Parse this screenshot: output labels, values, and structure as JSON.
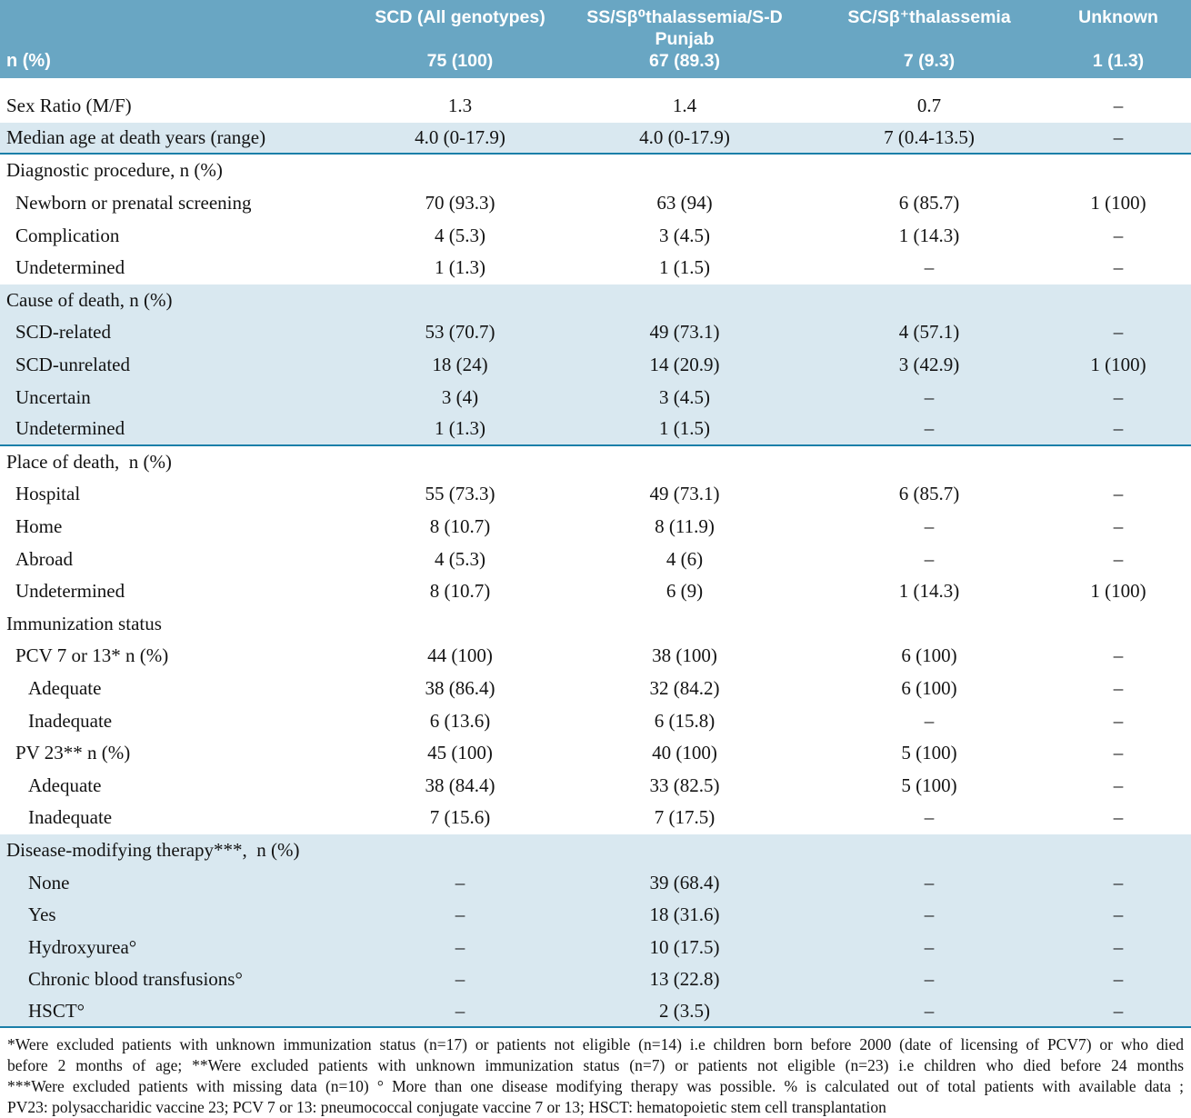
{
  "colors": {
    "header_bg": "#69a6c3",
    "highlight_bg": "#d9e8f0",
    "rule": "#1b7fa9"
  },
  "table": {
    "header": {
      "row_label": "n (%)",
      "columns": [
        {
          "title": "SCD (All genotypes)",
          "count": "75 (100)"
        },
        {
          "title": "SS/Sβ⁰thalassemia/S-D Punjab",
          "count": "67 (89.3)"
        },
        {
          "title": "SC/Sβ⁺thalassemia",
          "count": "7 (9.3)"
        },
        {
          "title": "Unknown",
          "count": "1 (1.3)"
        }
      ]
    },
    "rows": [
      {
        "label": "Sex Ratio (M/F)",
        "indent": 0,
        "highlight": false,
        "border_bottom": false,
        "values": [
          "1.3",
          "1.4",
          "0.7",
          "–"
        ]
      },
      {
        "label": "Median age at death years (range)",
        "indent": 0,
        "highlight": true,
        "border_bottom": true,
        "values": [
          "4.0 (0-17.9)",
          "4.0 (0-17.9)",
          "7 (0.4-13.5)",
          "–"
        ]
      },
      {
        "label": "Diagnostic procedure, n (%)",
        "indent": 0,
        "highlight": false,
        "border_bottom": false,
        "values": [
          "",
          "",
          "",
          ""
        ]
      },
      {
        "label": "Newborn or prenatal screening",
        "indent": 1,
        "highlight": false,
        "border_bottom": false,
        "values": [
          "70 (93.3)",
          "63 (94)",
          "6 (85.7)",
          "1 (100)"
        ]
      },
      {
        "label": "Complication",
        "indent": 1,
        "highlight": false,
        "border_bottom": false,
        "values": [
          "4 (5.3)",
          "3 (4.5)",
          "1 (14.3)",
          "–"
        ]
      },
      {
        "label": "Undetermined",
        "indent": 1,
        "highlight": false,
        "border_bottom": false,
        "values": [
          "1 (1.3)",
          "1 (1.5)",
          "–",
          "–"
        ]
      },
      {
        "label": "Cause of death, n (%)",
        "indent": 0,
        "highlight": true,
        "border_bottom": false,
        "values": [
          "",
          "",
          "",
          ""
        ]
      },
      {
        "label": "SCD-related",
        "indent": 1,
        "highlight": true,
        "border_bottom": false,
        "values": [
          "53 (70.7)",
          "49 (73.1)",
          "4 (57.1)",
          "–"
        ]
      },
      {
        "label": "SCD-unrelated",
        "indent": 1,
        "highlight": true,
        "border_bottom": false,
        "values": [
          "18 (24)",
          "14 (20.9)",
          "3 (42.9)",
          "1 (100)"
        ]
      },
      {
        "label": "Uncertain",
        "indent": 1,
        "highlight": true,
        "border_bottom": false,
        "values": [
          "3 (4)",
          "3 (4.5)",
          "–",
          "–"
        ]
      },
      {
        "label": "Undetermined",
        "indent": 1,
        "highlight": true,
        "border_bottom": true,
        "values": [
          "1 (1.3)",
          "1 (1.5)",
          "–",
          "–"
        ]
      },
      {
        "label": "Place of death,  n (%)",
        "indent": 0,
        "highlight": false,
        "border_bottom": false,
        "values": [
          "",
          "",
          "",
          ""
        ]
      },
      {
        "label": "Hospital",
        "indent": 1,
        "highlight": false,
        "border_bottom": false,
        "values": [
          "55 (73.3)",
          "49 (73.1)",
          "6 (85.7)",
          "–"
        ]
      },
      {
        "label": "Home",
        "indent": 1,
        "highlight": false,
        "border_bottom": false,
        "values": [
          "8 (10.7)",
          "8 (11.9)",
          "–",
          "–"
        ]
      },
      {
        "label": "Abroad",
        "indent": 1,
        "highlight": false,
        "border_bottom": false,
        "values": [
          "4 (5.3)",
          "4 (6)",
          "–",
          "–"
        ]
      },
      {
        "label": "Undetermined",
        "indent": 1,
        "highlight": false,
        "border_bottom": false,
        "values": [
          "8 (10.7)",
          "6 (9)",
          "1 (14.3)",
          "1 (100)"
        ]
      },
      {
        "label": "Immunization status",
        "indent": 0,
        "highlight": false,
        "border_bottom": false,
        "values": [
          "",
          "",
          "",
          ""
        ]
      },
      {
        "label": "PCV 7 or 13* n (%)",
        "indent": 1,
        "highlight": false,
        "border_bottom": false,
        "values": [
          "44 (100)",
          "38 (100)",
          "6 (100)",
          "–"
        ]
      },
      {
        "label": "Adequate",
        "indent": 2,
        "highlight": false,
        "border_bottom": false,
        "values": [
          "38 (86.4)",
          "32 (84.2)",
          "6 (100)",
          "–"
        ]
      },
      {
        "label": "Inadequate",
        "indent": 2,
        "highlight": false,
        "border_bottom": false,
        "values": [
          "6 (13.6)",
          "6 (15.8)",
          "–",
          "–"
        ]
      },
      {
        "label": "PV 23** n (%)",
        "indent": 1,
        "highlight": false,
        "border_bottom": false,
        "values": [
          "45 (100)",
          "40 (100)",
          "5 (100)",
          "–"
        ]
      },
      {
        "label": "Adequate",
        "indent": 2,
        "highlight": false,
        "border_bottom": false,
        "values": [
          "38 (84.4)",
          "33 (82.5)",
          "5 (100)",
          "–"
        ]
      },
      {
        "label": "Inadequate",
        "indent": 2,
        "highlight": false,
        "border_bottom": false,
        "values": [
          "7 (15.6)",
          "7 (17.5)",
          "–",
          "–"
        ]
      },
      {
        "label": "Disease-modifying therapy***,  n (%)",
        "indent": 0,
        "highlight": true,
        "border_bottom": false,
        "values": [
          "",
          "",
          "",
          ""
        ]
      },
      {
        "label": "None",
        "indent": 2,
        "highlight": true,
        "border_bottom": false,
        "values": [
          "–",
          "39 (68.4)",
          "–",
          "–"
        ]
      },
      {
        "label": "Yes",
        "indent": 2,
        "highlight": true,
        "border_bottom": false,
        "values": [
          "–",
          "18 (31.6)",
          "–",
          "–"
        ]
      },
      {
        "label": "Hydroxyurea°",
        "indent": 2,
        "highlight": true,
        "border_bottom": false,
        "values": [
          "–",
          "10 (17.5)",
          "–",
          "–"
        ]
      },
      {
        "label": "Chronic blood transfusions°",
        "indent": 2,
        "highlight": true,
        "border_bottom": false,
        "values": [
          "–",
          "13 (22.8)",
          "–",
          "–"
        ]
      },
      {
        "label": "HSCT°",
        "indent": 2,
        "highlight": true,
        "border_bottom": true,
        "values": [
          "–",
          "2 (3.5)",
          "–",
          "–"
        ]
      }
    ],
    "footnotes": [
      "*Were excluded patients with unknown immunization status (n=17) or patients not eligible  (n=14) i.e children born before 2000 (date of licensing of PCV7) or who died",
      "before 2 months of age;  **Were excluded patients with unknown immunization status (n=7) or patients not eligible  (n=23) i.e  children who died before 24 months",
      "***Were excluded patients with missing data (n=10) ° More than one disease modifying therapy was possible. % is calculated out of total patients with available data ;",
      "PV23: polysaccharidic vaccine 23; PCV 7 or 13: pneumococcal conjugate vaccine 7 or 13; HSCT: hematopoietic stem cell transplantation"
    ]
  }
}
